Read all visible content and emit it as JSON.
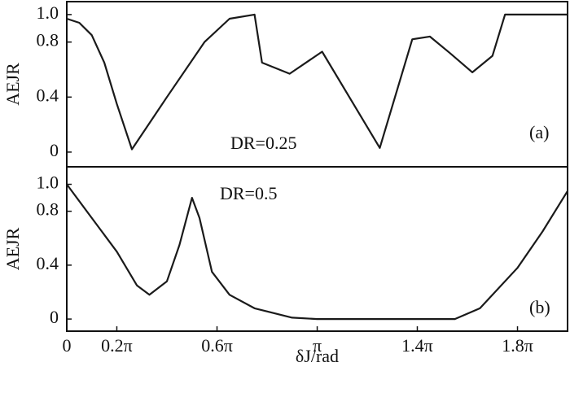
{
  "chart_data": [
    {
      "type": "line",
      "ylabel": "AEJR",
      "annotations": [
        "DR=0.25",
        "(a)"
      ],
      "xlim": [
        0,
        6.283
      ],
      "ylim": [
        -0.107,
        1.094
      ],
      "yticks": [
        0,
        0.4,
        0.8,
        {
          "value": 1,
          "label": "1.0"
        }
      ],
      "series": [
        {
          "color": "#1a1a1a",
          "x": [
            0,
            0.157,
            0.314,
            0.471,
            0.628,
            0.817,
            1.257,
            1.728,
            2.042,
            2.356,
            2.45,
            2.796,
            3.204,
            3.927,
            4.335,
            4.555,
            4.807,
            5.089,
            5.341,
            5.498,
            6.283
          ],
          "values": [
            0.97,
            0.94,
            0.85,
            0.65,
            0.35,
            0.02,
            0.4,
            0.8,
            0.97,
            1.0,
            0.65,
            0.57,
            0.73,
            0.03,
            0.82,
            0.84,
            0.72,
            0.58,
            0.7,
            1.0,
            1.0
          ]
        }
      ]
    },
    {
      "type": "line",
      "ylabel": "AEJR",
      "xlabel": "δJ/rad",
      "annotations": [
        "DR=0.5",
        "(b)"
      ],
      "xlim": [
        0,
        6.283
      ],
      "xticks": [
        0,
        {
          "value": 0.628,
          "label": "0.2π"
        },
        {
          "value": 1.885,
          "label": "0.6π"
        },
        {
          "value": 3.142,
          "label": "π"
        },
        {
          "value": 4.398,
          "label": "1.4π"
        },
        {
          "value": 5.655,
          "label": "1.8π"
        }
      ],
      "ylim": [
        -0.09,
        1.13
      ],
      "yticks": [
        0,
        0.4,
        0.8,
        {
          "value": 1,
          "label": "1.0"
        }
      ],
      "series": [
        {
          "color": "#1a1a1a",
          "x": [
            0,
            0.314,
            0.628,
            0.88,
            1.037,
            1.257,
            1.414,
            1.571,
            1.665,
            1.822,
            2.042,
            2.356,
            2.827,
            3.142,
            4.869,
            5.184,
            5.655,
            5.969,
            6.283
          ],
          "values": [
            1.0,
            0.75,
            0.5,
            0.25,
            0.18,
            0.28,
            0.55,
            0.9,
            0.75,
            0.35,
            0.18,
            0.08,
            0.01,
            0,
            0,
            0.08,
            0.38,
            0.65,
            0.95
          ]
        }
      ]
    }
  ]
}
